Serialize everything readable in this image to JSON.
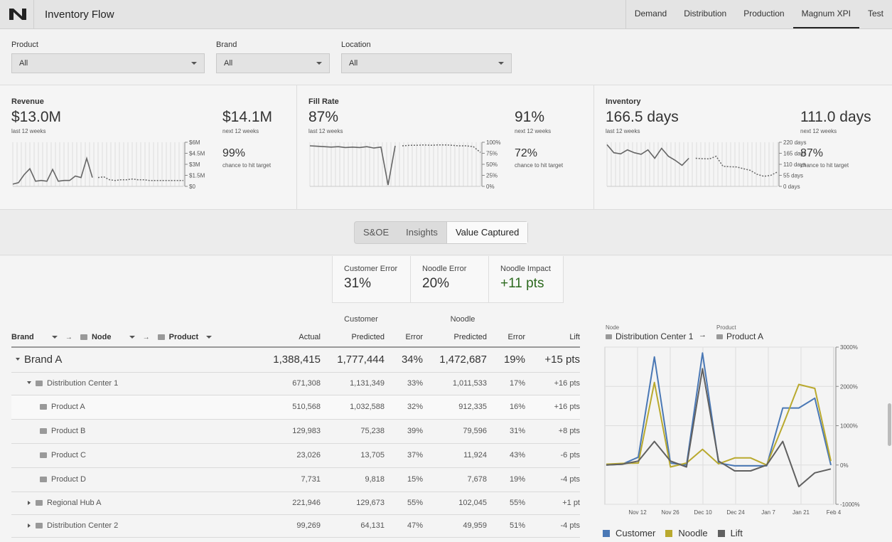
{
  "app": {
    "title": "Inventory Flow"
  },
  "nav": {
    "tabs": [
      "Demand",
      "Distribution",
      "Production",
      "Magnum XPI",
      "Test"
    ],
    "active": "Magnum XPI"
  },
  "filters": [
    {
      "label": "Product",
      "value": "All"
    },
    {
      "label": "Brand",
      "value": "All"
    },
    {
      "label": "Location",
      "value": "All"
    }
  ],
  "kpis": [
    {
      "title": "Revenue",
      "value": "$13.0M",
      "sub": "last 12 weeks",
      "next_value": "$14.1M",
      "next_sub": "next 12 weeks",
      "chance": "99%",
      "chance_sub": "chance to hit target",
      "axis": [
        "$6M",
        "$4.5M",
        "$3M",
        "$1.5M",
        "$0"
      ]
    },
    {
      "title": "Fill Rate",
      "value": "87%",
      "sub": "last 12 weeks",
      "next_value": "91%",
      "next_sub": "next 12 weeks",
      "chance": "72%",
      "chance_sub": "chance to hit target",
      "axis": [
        "100%",
        "75%",
        "50%",
        "25%",
        "0%"
      ]
    },
    {
      "title": "Inventory",
      "value": "166.5 days",
      "sub": "last 12 weeks",
      "next_value": "111.0 days",
      "next_sub": "next 12 weeks",
      "chance": "87%",
      "chance_sub": "chance to hit target",
      "axis": [
        "220 days",
        "165 days",
        "110 days",
        "55 days",
        "0 days"
      ]
    }
  ],
  "sparks": {
    "revenue": {
      "actual": [
        0.3,
        0.5,
        1.6,
        2.4,
        0.7,
        0.8,
        0.7,
        2.3,
        0.7,
        0.8,
        0.8,
        1.4,
        1.2,
        3.8,
        1.2
      ],
      "forecast": [
        1.2,
        1.3,
        0.9,
        0.8,
        0.9,
        0.9,
        1.0,
        0.9,
        0.9,
        0.8,
        0.8,
        0.8,
        0.8,
        0.8,
        0.8,
        0.8
      ]
    },
    "fill_rate": {
      "actual": [
        92,
        91,
        90,
        89,
        90,
        88,
        89,
        88,
        90,
        87,
        89,
        3,
        92
      ],
      "forecast": [
        92,
        93,
        93,
        94,
        93,
        94,
        94,
        93,
        92,
        92,
        90,
        77
      ]
    },
    "inventory": {
      "actual": [
        208,
        168,
        162,
        182,
        168,
        160,
        182,
        140,
        190,
        150,
        130,
        105,
        140
      ],
      "forecast": [
        140,
        138,
        137,
        150,
        100,
        98,
        97,
        88,
        80,
        60,
        50,
        55,
        72
      ]
    }
  },
  "segments": {
    "tabs": [
      "S&OE",
      "Insights",
      "Value Captured"
    ],
    "active": "Value Captured"
  },
  "metrics": [
    {
      "label": "Customer Error",
      "value": "31%"
    },
    {
      "label": "Noodle Error",
      "value": "20%"
    },
    {
      "label": "Noodle Impact",
      "value": "+11 pts"
    }
  ],
  "table": {
    "group_headers": {
      "customer": "Customer",
      "noodle": "Noodle"
    },
    "hier_headers": {
      "brand": "Brand",
      "node": "Node",
      "product": "Product"
    },
    "columns": [
      "Actual",
      "Predicted",
      "Error",
      "Predicted",
      "Error",
      "Lift"
    ],
    "rows": [
      {
        "label": "Brand A",
        "level": 0,
        "actual": "1,388,415",
        "cust_pred": "1,777,444",
        "cust_err": "34%",
        "nood_pred": "1,472,687",
        "nood_err": "19%",
        "lift": "+15 pts"
      },
      {
        "label": "Distribution Center 1",
        "level": 1,
        "actual": "671,308",
        "cust_pred": "1,131,349",
        "cust_err": "33%",
        "nood_pred": "1,011,533",
        "nood_err": "17%",
        "lift": "+16 pts"
      },
      {
        "label": "Product A",
        "level": 2,
        "actual": "510,568",
        "cust_pred": "1,032,588",
        "cust_err": "32%",
        "nood_pred": "912,335",
        "nood_err": "16%",
        "lift": "+16 pts"
      },
      {
        "label": "Product B",
        "level": 2,
        "actual": "129,983",
        "cust_pred": "75,238",
        "cust_err": "39%",
        "nood_pred": "79,596",
        "nood_err": "31%",
        "lift": "+8 pts"
      },
      {
        "label": "Product C",
        "level": 2,
        "actual": "23,026",
        "cust_pred": "13,705",
        "cust_err": "37%",
        "nood_pred": "11,924",
        "nood_err": "43%",
        "lift": "-6 pts"
      },
      {
        "label": "Product D",
        "level": 2,
        "actual": "7,731",
        "cust_pred": "9,818",
        "cust_err": "15%",
        "nood_pred": "7,678",
        "nood_err": "19%",
        "lift": "-4 pts"
      },
      {
        "label": "Regional Hub A",
        "level": 1,
        "actual": "221,946",
        "cust_pred": "129,673",
        "cust_err": "55%",
        "nood_pred": "102,045",
        "nood_err": "55%",
        "lift": "+1 pt"
      },
      {
        "label": "Distribution Center 2",
        "level": 1,
        "actual": "99,269",
        "cust_pred": "64,131",
        "cust_err": "47%",
        "nood_pred": "49,959",
        "nood_err": "51%",
        "lift": "-4 pts"
      }
    ]
  },
  "detail": {
    "node_label": "Node",
    "node_value": "Distribution Center 1",
    "product_label": "Product",
    "product_value": "Product A"
  },
  "chart_data": {
    "type": "line",
    "x_ticks": [
      "Nov 12",
      "Nov 26",
      "Dec 10",
      "Dec 24",
      "Jan 7",
      "Jan 21",
      "Feb 4"
    ],
    "y_ticks": [
      "3000%",
      "2000%",
      "1000%",
      "0%",
      "-1000%"
    ],
    "ylim": [
      -1000,
      3000
    ],
    "series": [
      {
        "name": "Customer",
        "color": "#4a78b5",
        "values": [
          0,
          20,
          200,
          2750,
          50,
          0,
          2850,
          50,
          -20,
          -20,
          -20,
          1450,
          1450,
          1700,
          0
        ]
      },
      {
        "name": "Noodle",
        "color": "#b9a92e",
        "values": [
          20,
          40,
          50,
          2100,
          -50,
          50,
          400,
          30,
          180,
          180,
          0,
          1000,
          2050,
          1950,
          100
        ]
      },
      {
        "name": "Lift",
        "color": "#606060",
        "values": [
          0,
          20,
          100,
          600,
          100,
          -50,
          2450,
          100,
          -150,
          -150,
          0,
          600,
          -550,
          -200,
          -100
        ]
      }
    ]
  }
}
